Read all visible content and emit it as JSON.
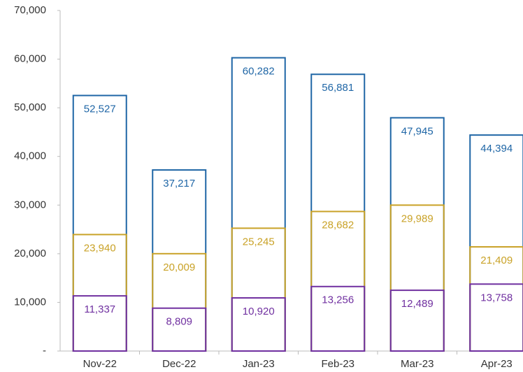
{
  "chart_data": {
    "type": "bar",
    "categories": [
      "Nov-22",
      "Dec-22",
      "Jan-23",
      "Feb-23",
      "Mar-23",
      "Apr-23"
    ],
    "series": [
      {
        "color": "#1f66a6",
        "values": [
          52527,
          37217,
          60282,
          56881,
          47945,
          44394
        ]
      },
      {
        "color": "#c9a227",
        "values": [
          23940,
          20009,
          25245,
          28682,
          29989,
          21409
        ]
      },
      {
        "color": "#7030a0",
        "values": [
          11337,
          8809,
          10920,
          13256,
          12489,
          13758
        ]
      }
    ],
    "ylim": [
      0,
      70000
    ],
    "yticks": [
      {
        "value": 0,
        "label": "-"
      },
      {
        "value": 10000,
        "label": "10,000"
      },
      {
        "value": 20000,
        "label": "20,000"
      },
      {
        "value": 30000,
        "label": "30,000"
      },
      {
        "value": 40000,
        "label": "40,000"
      },
      {
        "value": 50000,
        "label": "50,000"
      },
      {
        "value": 60000,
        "label": "60,000"
      },
      {
        "value": 70000,
        "label": "70,000"
      }
    ],
    "value_labels": [
      [
        "52,527",
        "37,217",
        "60,282",
        "56,881",
        "47,945",
        "44,394"
      ],
      [
        "23,940",
        "20,009",
        "25,245",
        "28,682",
        "29,989",
        "21,409"
      ],
      [
        "11,337",
        "8,809",
        "10,920",
        "13,256",
        "12,489",
        "13,758"
      ]
    ],
    "grid": false
  }
}
